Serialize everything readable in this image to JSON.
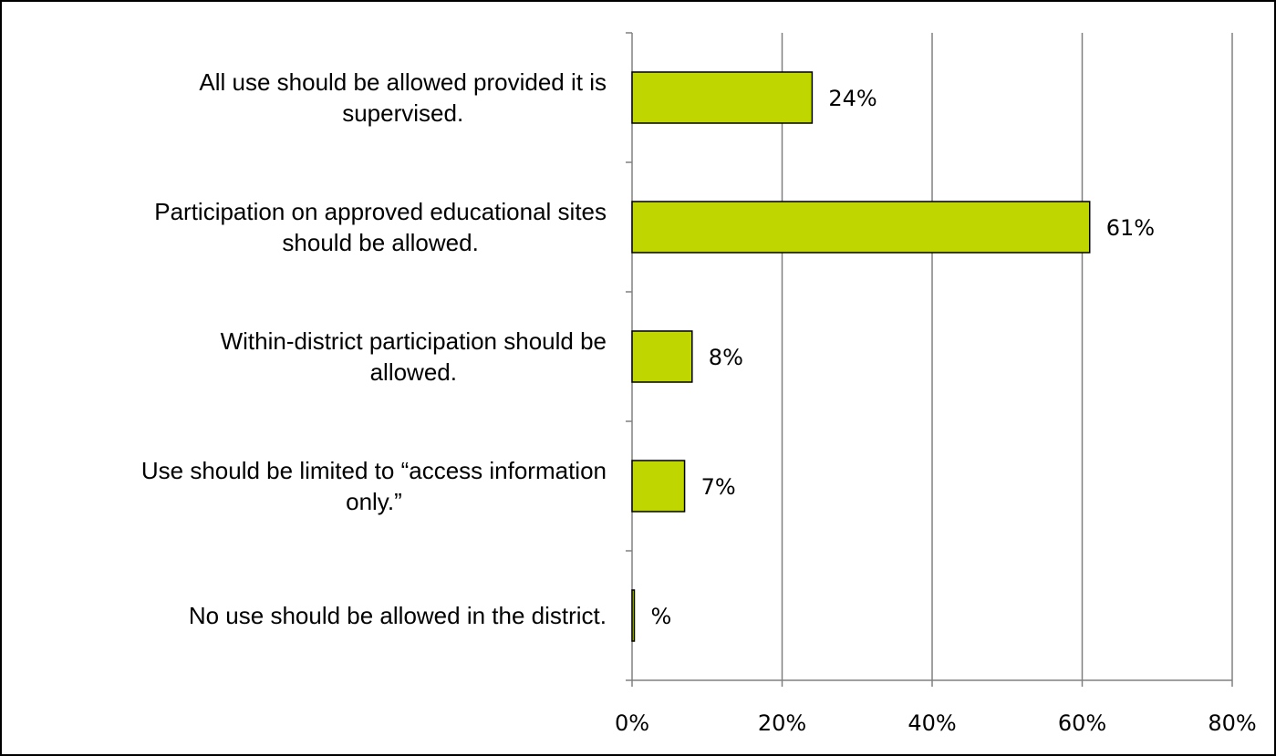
{
  "chart_data": {
    "type": "bar",
    "orientation": "horizontal",
    "title": "",
    "xlabel": "",
    "ylabel": "",
    "categories": [
      [
        "All use should be allowed provided it is",
        "supervised."
      ],
      [
        "Participation on approved educational sites",
        "should be allowed."
      ],
      [
        "Within-district participation should be",
        "allowed."
      ],
      [
        "Use should be limited to “access information",
        "only.”"
      ],
      [
        "No use should be allowed in the district."
      ]
    ],
    "values": [
      0.24,
      0.61,
      0.08,
      0.07,
      0.003
    ],
    "data_labels": [
      "24%",
      "61%",
      "8%",
      "7%",
      "%"
    ],
    "xlim": [
      0,
      0.8
    ],
    "xticks": [
      0,
      0.2,
      0.4,
      0.6,
      0.8
    ],
    "xtick_labels": [
      "0%",
      "20%",
      "40%",
      "60%",
      "80%"
    ],
    "grid": "vertical",
    "legend": "none",
    "bar_color": "#bfd600",
    "bar_edge_color": "#000000",
    "gridline_color": "#808080",
    "border_color": "#000000"
  }
}
